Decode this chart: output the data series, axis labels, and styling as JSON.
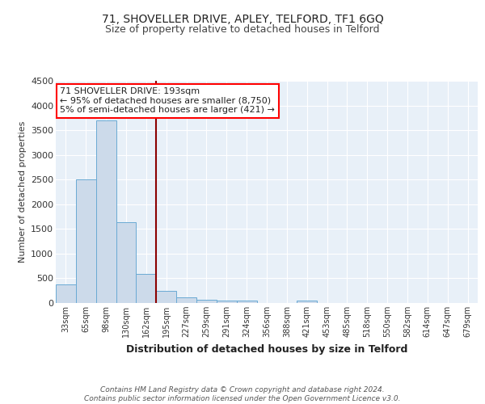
{
  "title": "71, SHOVELLER DRIVE, APLEY, TELFORD, TF1 6GQ",
  "subtitle": "Size of property relative to detached houses in Telford",
  "xlabel": "Distribution of detached houses by size in Telford",
  "ylabel": "Number of detached properties",
  "categories": [
    "33sqm",
    "65sqm",
    "98sqm",
    "130sqm",
    "162sqm",
    "195sqm",
    "227sqm",
    "259sqm",
    "291sqm",
    "324sqm",
    "356sqm",
    "388sqm",
    "421sqm",
    "453sqm",
    "485sqm",
    "518sqm",
    "550sqm",
    "582sqm",
    "614sqm",
    "647sqm",
    "679sqm"
  ],
  "values": [
    380,
    2500,
    3700,
    1630,
    590,
    240,
    110,
    65,
    45,
    45,
    0,
    0,
    55,
    0,
    0,
    0,
    0,
    0,
    0,
    0,
    0
  ],
  "bar_color": "#ccdaea",
  "bar_edge_color": "#6aaad4",
  "red_line_index": 4.5,
  "annotation_line1": "71 SHOVELLER DRIVE: 193sqm",
  "annotation_line2": "← 95% of detached houses are smaller (8,750)",
  "annotation_line3": "5% of semi-detached houses are larger (421) →",
  "footer_line1": "Contains HM Land Registry data © Crown copyright and database right 2024.",
  "footer_line2": "Contains public sector information licensed under the Open Government Licence v3.0.",
  "ylim": [
    0,
    4500
  ],
  "yticks": [
    0,
    500,
    1000,
    1500,
    2000,
    2500,
    3000,
    3500,
    4000,
    4500
  ],
  "background_color": "#ffffff",
  "plot_bg_color": "#e8f0f8",
  "grid_color": "#ffffff",
  "title_fontsize": 10,
  "subtitle_fontsize": 9,
  "ylabel_fontsize": 8,
  "xlabel_fontsize": 9,
  "tick_fontsize": 7,
  "footer_fontsize": 6.5,
  "ann_fontsize": 8
}
